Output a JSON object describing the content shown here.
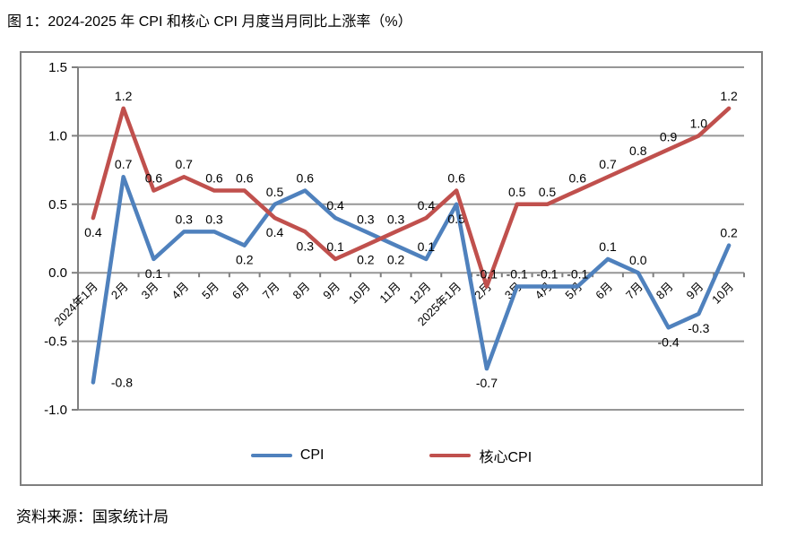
{
  "page": {
    "source": "资料来源：国家统计局"
  },
  "chart_data": {
    "type": "line",
    "title": "图 1：2024-2025 年 CPI 和核心 CPI 月度当月同比上涨率（%）",
    "xlabel": "",
    "ylabel": "",
    "categories": [
      "2024年1月",
      "2月",
      "3月",
      "4月",
      "5月",
      "6月",
      "7月",
      "8月",
      "9月",
      "10月",
      "11月",
      "12月",
      "2025年1月",
      "2月",
      "3月",
      "4月",
      "5月",
      "6月",
      "7月",
      "8月",
      "9月",
      "10月"
    ],
    "series": [
      {
        "name": "CPI",
        "color": "#4F81BD",
        "values": [
          -0.8,
          0.7,
          0.1,
          0.3,
          0.3,
          0.2,
          0.5,
          0.6,
          0.4,
          0.3,
          0.2,
          0.1,
          0.5,
          -0.7,
          -0.1,
          -0.1,
          -0.1,
          0.1,
          0.0,
          -0.4,
          -0.3,
          0.2
        ],
        "label_pos": [
          "right",
          "above",
          "below",
          "above",
          "above",
          "below",
          "above",
          "above",
          "above",
          "above",
          "below",
          "above",
          "below",
          "below",
          "above",
          "above",
          "above",
          "above",
          "above",
          "below",
          "below",
          "above"
        ]
      },
      {
        "name": "核心CPI",
        "color": "#C0504D",
        "values": [
          0.4,
          1.2,
          0.6,
          0.7,
          0.6,
          0.6,
          0.4,
          0.3,
          0.1,
          0.2,
          0.3,
          0.4,
          0.6,
          -0.1,
          0.5,
          0.5,
          0.6,
          0.7,
          0.8,
          0.9,
          1.0,
          1.2
        ],
        "label_pos": [
          "below",
          "above",
          "above",
          "above",
          "above",
          "above",
          "below",
          "below",
          "above",
          "below",
          "above",
          "above",
          "above",
          "above",
          "above",
          "above",
          "above",
          "above",
          "above",
          "above",
          "above",
          "above"
        ]
      }
    ],
    "ylim": [
      -1.0,
      1.5
    ],
    "ytick_step": 0.5,
    "ytick_labels": [
      "1.5",
      "1.0",
      "0.5",
      "0.0",
      "-0.5",
      "-1.0"
    ],
    "grid": true,
    "legend_position": "bottom",
    "style_colors": {
      "grid": "#969696",
      "axis": "#7f7f7f",
      "border": "#7f7f7f",
      "label_text": "#000000"
    }
  }
}
